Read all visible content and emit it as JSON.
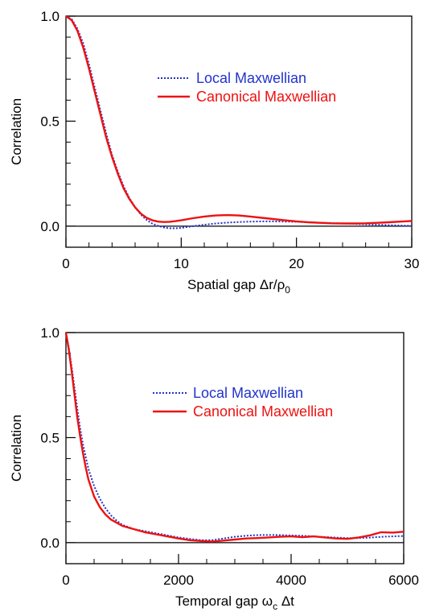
{
  "chart_data": [
    {
      "type": "line",
      "xlabel_main": "Spatial gap",
      "xlabel_math": "Δr/ρ",
      "xlabel_sub": "0",
      "ylabel": "Correlation",
      "xlim": [
        0,
        30
      ],
      "ylim": [
        -0.1,
        1.0
      ],
      "xticks": [
        0,
        10,
        20,
        30
      ],
      "xtick_labels": [
        "0",
        "10",
        "20",
        "30"
      ],
      "yticks": [
        0.0,
        0.5,
        1.0
      ],
      "ytick_labels": [
        "0.0",
        "0.5",
        "1.0"
      ],
      "x_minor_step": 2,
      "y_minor_step": 0.1,
      "zero_line": true,
      "legend_position": "upper-right",
      "series": [
        {
          "name": "Local Maxwellian",
          "color": "#2233cc",
          "style": "dotted",
          "x": [
            0,
            0.5,
            1,
            1.5,
            2,
            2.5,
            3,
            3.5,
            4,
            4.5,
            5,
            5.5,
            6,
            6.5,
            7,
            7.5,
            8,
            8.5,
            9,
            9.5,
            10,
            11,
            12,
            13,
            14,
            15,
            16,
            17,
            18,
            19,
            20,
            21,
            22,
            23,
            24,
            25,
            26,
            27,
            28,
            29,
            30
          ],
          "values": [
            1.0,
            0.985,
            0.94,
            0.87,
            0.77,
            0.66,
            0.55,
            0.44,
            0.34,
            0.26,
            0.19,
            0.135,
            0.09,
            0.055,
            0.03,
            0.012,
            0.002,
            -0.006,
            -0.01,
            -0.01,
            -0.008,
            0.0,
            0.007,
            0.013,
            0.017,
            0.02,
            0.022,
            0.023,
            0.023,
            0.022,
            0.021,
            0.019,
            0.017,
            0.015,
            0.013,
            0.011,
            0.009,
            0.007,
            0.005,
            0.003,
            0.002
          ]
        },
        {
          "name": "Canonical Maxwellian",
          "color": "#ee1111",
          "style": "solid",
          "x": [
            0,
            0.5,
            1,
            1.5,
            2,
            2.5,
            3,
            3.5,
            4,
            4.5,
            5,
            5.5,
            6,
            6.5,
            7,
            7.5,
            8,
            8.5,
            9,
            9.5,
            10,
            11,
            12,
            13,
            14,
            15,
            16,
            17,
            18,
            19,
            20,
            21,
            22,
            23,
            24,
            25,
            26,
            27,
            28,
            29,
            30
          ],
          "values": [
            1.0,
            0.98,
            0.93,
            0.85,
            0.75,
            0.64,
            0.53,
            0.42,
            0.33,
            0.25,
            0.18,
            0.13,
            0.09,
            0.06,
            0.04,
            0.028,
            0.022,
            0.02,
            0.021,
            0.024,
            0.028,
            0.038,
            0.046,
            0.051,
            0.053,
            0.051,
            0.046,
            0.04,
            0.034,
            0.028,
            0.023,
            0.019,
            0.016,
            0.014,
            0.013,
            0.013,
            0.014,
            0.016,
            0.019,
            0.022,
            0.025
          ]
        }
      ]
    },
    {
      "type": "line",
      "xlabel_main": "Temporal gap",
      "xlabel_math": "ω",
      "xlabel_sub": "c",
      "xlabel_tail": "Δt",
      "ylabel": "Correlation",
      "xlim": [
        0,
        6000
      ],
      "ylim": [
        -0.1,
        1.0
      ],
      "xticks": [
        0,
        2000,
        4000,
        6000
      ],
      "xtick_labels": [
        "0",
        "2000",
        "4000",
        "6000"
      ],
      "yticks": [
        0.0,
        0.5,
        1.0
      ],
      "ytick_labels": [
        "0.0",
        "0.5",
        "1.0"
      ],
      "x_minor_step": 500,
      "y_minor_step": 0.1,
      "zero_line": true,
      "legend_position": "upper-right",
      "series": [
        {
          "name": "Local Maxwellian",
          "color": "#2233cc",
          "style": "dotted",
          "x": [
            0,
            50,
            100,
            150,
            200,
            250,
            300,
            350,
            400,
            500,
            600,
            700,
            800,
            900,
            1000,
            1200,
            1400,
            1600,
            1800,
            2000,
            2200,
            2400,
            2600,
            2800,
            3000,
            3200,
            3400,
            3600,
            3800,
            4000,
            4200,
            4400,
            4600,
            4800,
            5000,
            5200,
            5400,
            5600,
            5800,
            6000
          ],
          "values": [
            1.0,
            0.93,
            0.84,
            0.74,
            0.64,
            0.55,
            0.47,
            0.41,
            0.35,
            0.27,
            0.21,
            0.165,
            0.13,
            0.105,
            0.085,
            0.065,
            0.055,
            0.045,
            0.035,
            0.025,
            0.018,
            0.012,
            0.012,
            0.02,
            0.028,
            0.033,
            0.036,
            0.037,
            0.036,
            0.034,
            0.033,
            0.03,
            0.027,
            0.024,
            0.022,
            0.022,
            0.024,
            0.028,
            0.03,
            0.032
          ]
        },
        {
          "name": "Canonical Maxwellian",
          "color": "#ee1111",
          "style": "solid",
          "x": [
            0,
            50,
            100,
            150,
            200,
            250,
            300,
            350,
            400,
            500,
            600,
            700,
            800,
            900,
            1000,
            1200,
            1400,
            1600,
            1800,
            2000,
            2200,
            2400,
            2600,
            2800,
            3000,
            3200,
            3400,
            3600,
            3800,
            4000,
            4200,
            4400,
            4600,
            4800,
            5000,
            5200,
            5400,
            5600,
            5800,
            6000
          ],
          "values": [
            1.0,
            0.92,
            0.82,
            0.71,
            0.6,
            0.51,
            0.43,
            0.36,
            0.3,
            0.22,
            0.17,
            0.135,
            0.11,
            0.095,
            0.08,
            0.065,
            0.05,
            0.04,
            0.03,
            0.02,
            0.012,
            0.008,
            0.005,
            0.01,
            0.015,
            0.02,
            0.022,
            0.025,
            0.028,
            0.03,
            0.026,
            0.03,
            0.025,
            0.02,
            0.018,
            0.025,
            0.035,
            0.05,
            0.048,
            0.052
          ]
        }
      ]
    }
  ]
}
